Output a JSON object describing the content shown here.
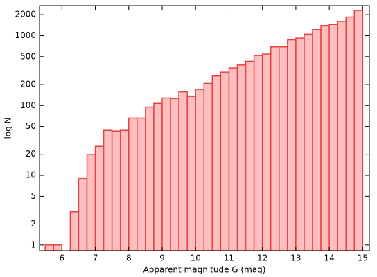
{
  "chart_data": {
    "type": "histogram",
    "y_label": "log N",
    "x_label": "Apparent magnitude G (mag)",
    "bins": [
      5.5,
      5.75,
      6.0,
      6.25,
      6.5,
      6.75,
      7.0,
      7.25,
      7.5,
      7.75,
      8.0,
      8.25,
      8.5,
      8.75,
      9.0,
      9.25,
      9.5,
      9.75,
      10.0,
      10.25,
      10.5,
      10.75,
      11.0,
      11.25,
      11.5,
      11.75,
      12.0,
      12.25,
      12.5,
      12.75,
      13.0,
      13.25,
      13.5,
      13.75,
      14.0,
      14.25,
      14.5,
      14.75,
      15.0
    ],
    "counts": [
      1,
      1,
      0,
      3,
      9,
      20,
      26,
      44,
      43,
      44,
      66,
      66,
      95,
      107,
      128,
      126,
      157,
      135,
      170,
      207,
      265,
      300,
      345,
      380,
      430,
      520,
      545,
      690,
      690,
      870,
      920,
      1050,
      1220,
      1400,
      1450,
      1600,
      1850,
      2300
    ],
    "color": "#ffbfbf",
    "edgecolor": "#e84040",
    "xlim": [
      5.33,
      15.2
    ],
    "xticks": [
      6,
      7,
      8,
      9,
      10,
      11,
      12,
      13,
      14,
      15
    ],
    "ylim": [
      0.83,
      2700
    ],
    "yticks": [
      1,
      2,
      5,
      10,
      20,
      50,
      100,
      200,
      500,
      1000,
      2000
    ],
    "ylog": true
  }
}
